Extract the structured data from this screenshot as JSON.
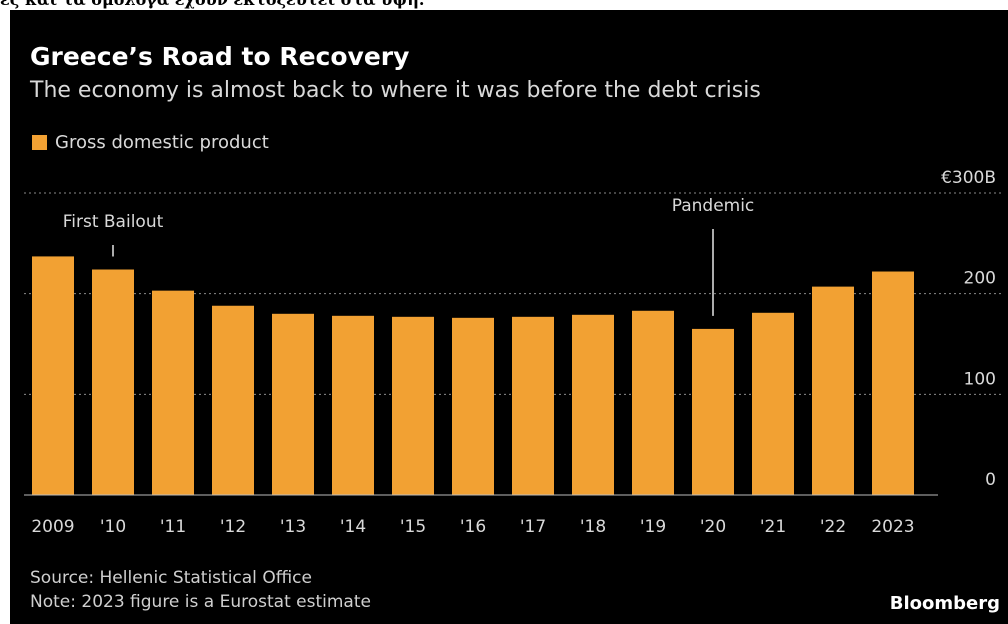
{
  "header_text": "ες και τα ομόλογα έχουν εκτοξευτεί στα ύψη.",
  "title": "Greece’s Road to Recovery",
  "subtitle": "The economy is almost back to where it was before the debt crisis",
  "legend": {
    "label": "Gross domestic product"
  },
  "source": "Source: Hellenic Statistical Office",
  "note": "Note: 2023 figure is a Eurostat estimate",
  "brand": "Bloomberg",
  "colors": {
    "bar": "#f2a133",
    "background": "#000000",
    "grid": "#8a8a8a",
    "text": "#d9d9d9"
  },
  "chart_data": {
    "type": "bar",
    "categories": [
      "2009",
      "'10",
      "'11",
      "'12",
      "'13",
      "'14",
      "'15",
      "'16",
      "'17",
      "'18",
      "'19",
      "'20",
      "'21",
      "'22",
      "2023"
    ],
    "series": [
      {
        "name": "Gross domestic product",
        "values": [
          237,
          224,
          203,
          188,
          180,
          178,
          177,
          176,
          177,
          179,
          183,
          165,
          181,
          207,
          222
        ]
      }
    ],
    "ylim": [
      0,
      300
    ],
    "yticks": [
      {
        "value": 0,
        "label": "0"
      },
      {
        "value": 100,
        "label": "100"
      },
      {
        "value": 200,
        "label": "200"
      },
      {
        "value": 300,
        "label": "€300B"
      }
    ],
    "annotations": [
      {
        "text": "First Bailout",
        "category": "'10"
      },
      {
        "text": "Pandemic",
        "category": "'20"
      }
    ],
    "grid": true,
    "legend_position": "top-left"
  }
}
